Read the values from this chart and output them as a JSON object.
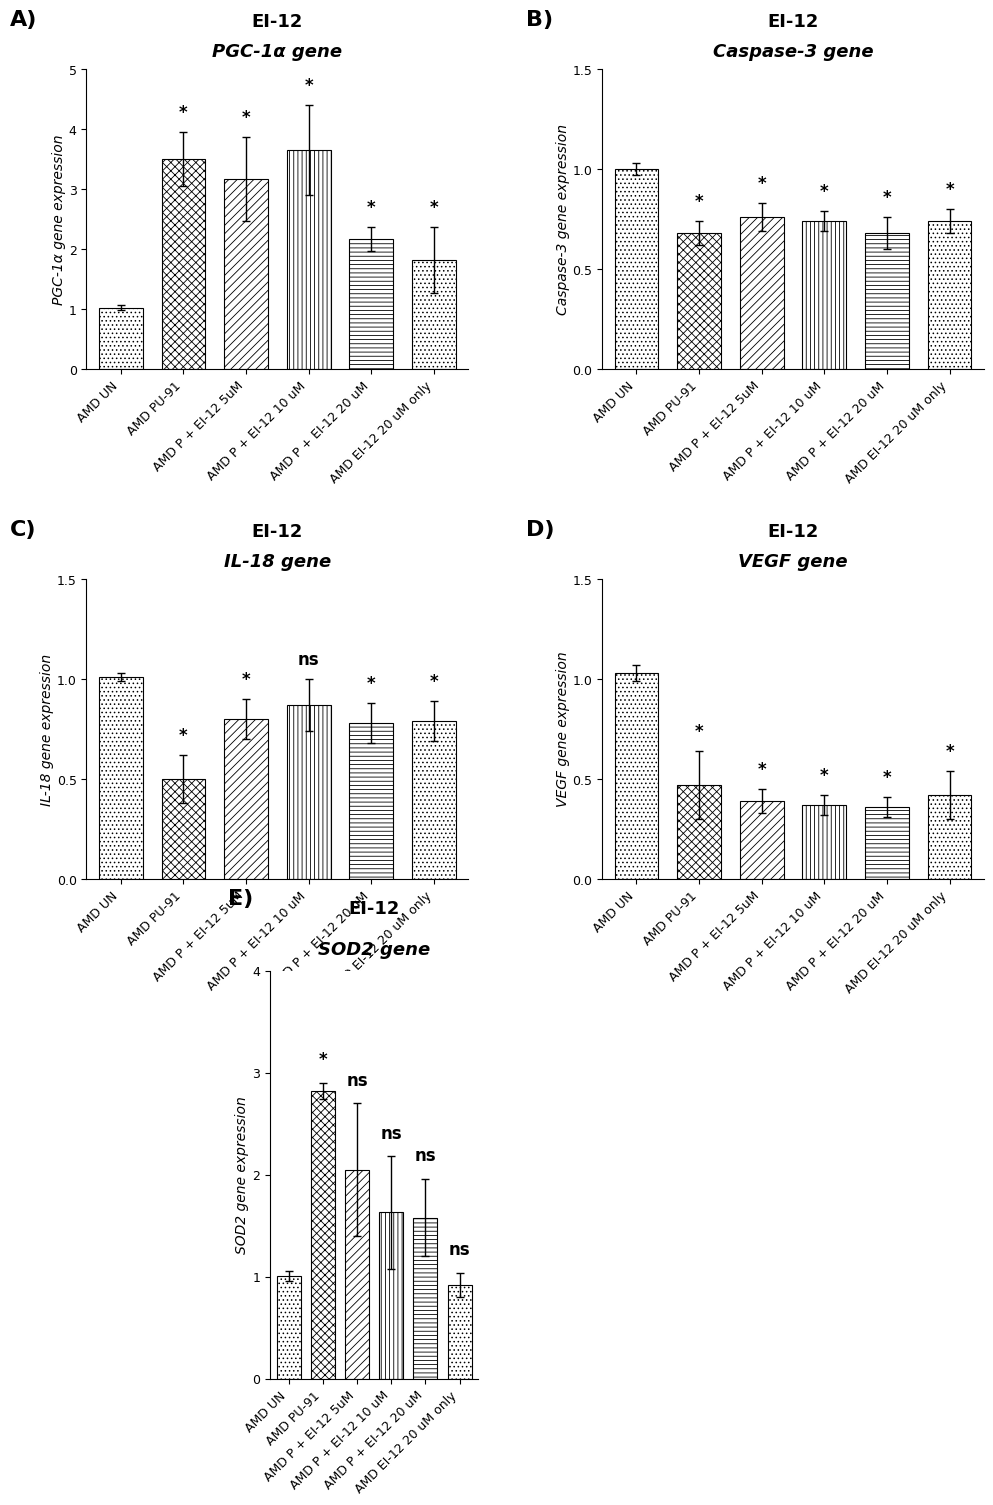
{
  "panels": [
    {
      "label": "A)",
      "title_line1": "EI-12",
      "title_line2": "PGC-1α gene",
      "ylabel": "PGC-1α gene expression",
      "ylim": [
        0,
        5
      ],
      "yticks": [
        0,
        1,
        2,
        3,
        4,
        5
      ],
      "categories": [
        "AMD UN",
        "AMD PU-91",
        "AMD P + EI-12 5uM",
        "AMD P + EI-12 10 uM",
        "AMD P + EI-12 20 uM",
        "AMD EI-12 20 uM only"
      ],
      "values": [
        1.03,
        3.5,
        3.17,
        3.65,
        2.17,
        1.83
      ],
      "errors": [
        0.05,
        0.45,
        0.7,
        0.75,
        0.2,
        0.55
      ],
      "sig": [
        "",
        "*",
        "*",
        "*",
        "*",
        "*"
      ]
    },
    {
      "label": "B)",
      "title_line1": "EI-12",
      "title_line2": "Caspase-3 gene",
      "ylabel": "Caspase-3 gene expression",
      "ylim": [
        0,
        1.5
      ],
      "yticks": [
        0.0,
        0.5,
        1.0,
        1.5
      ],
      "categories": [
        "AMD UN",
        "AMD PU-91",
        "AMD P + EI-12 5uM",
        "AMD P + EI-12 10 uM",
        "AMD P + EI-12 20 uM",
        "AMD EI-12 20 uM only"
      ],
      "values": [
        1.0,
        0.68,
        0.76,
        0.74,
        0.68,
        0.74
      ],
      "errors": [
        0.03,
        0.06,
        0.07,
        0.05,
        0.08,
        0.06
      ],
      "sig": [
        "",
        "*",
        "*",
        "*",
        "*",
        "*"
      ]
    },
    {
      "label": "C)",
      "title_line1": "EI-12",
      "title_line2": "IL-18 gene",
      "ylabel": "IL-18 gene expression",
      "ylim": [
        0,
        1.5
      ],
      "yticks": [
        0.0,
        0.5,
        1.0,
        1.5
      ],
      "categories": [
        "AMD UN",
        "AMD PU-91",
        "AMD P + EI-12 5uM",
        "AMD P + EI-12 10 uM",
        "AMD P + EI-12 20 uM",
        "AMD EI-12 20 uM only"
      ],
      "values": [
        1.01,
        0.5,
        0.8,
        0.87,
        0.78,
        0.79
      ],
      "errors": [
        0.02,
        0.12,
        0.1,
        0.13,
        0.1,
        0.1
      ],
      "sig": [
        "",
        "*",
        "*",
        "ns",
        "*",
        "*"
      ]
    },
    {
      "label": "D)",
      "title_line1": "EI-12",
      "title_line2": "VEGF gene",
      "ylabel": "VEGF gene expression",
      "ylim": [
        0,
        1.5
      ],
      "yticks": [
        0.0,
        0.5,
        1.0,
        1.5
      ],
      "categories": [
        "AMD UN",
        "AMD PU-91",
        "AMD P + EI-12 5uM",
        "AMD P + EI-12 10 uM",
        "AMD P + EI-12 20 uM",
        "AMD EI-12 20 uM only"
      ],
      "values": [
        1.03,
        0.47,
        0.39,
        0.37,
        0.36,
        0.42
      ],
      "errors": [
        0.04,
        0.17,
        0.06,
        0.05,
        0.05,
        0.12
      ],
      "sig": [
        "",
        "*",
        "*",
        "*",
        "*",
        "*"
      ]
    },
    {
      "label": "E)",
      "title_line1": "EI-12",
      "title_line2": "SOD2 gene",
      "ylabel": "SOD2 gene expression",
      "ylim": [
        0,
        4
      ],
      "yticks": [
        0,
        1,
        2,
        3,
        4
      ],
      "categories": [
        "AMD UN",
        "AMD PU-91",
        "AMD P + EI-12 5uM",
        "AMD P + EI-12 10 uM",
        "AMD P + EI-12 20 uM",
        "AMD EI-12 20 uM only"
      ],
      "values": [
        1.01,
        2.82,
        2.05,
        1.63,
        1.58,
        0.92
      ],
      "errors": [
        0.05,
        0.08,
        0.65,
        0.55,
        0.38,
        0.12
      ],
      "sig": [
        "",
        "*",
        "ns",
        "ns",
        "ns",
        "ns"
      ]
    }
  ],
  "hatch_patterns": [
    "....",
    "xxxx",
    "////",
    "||||",
    "----",
    "...."
  ],
  "label_fontsize": 16,
  "title_fontsize": 13,
  "ylabel_fontsize": 10,
  "tick_fontsize": 9,
  "sig_fontsize": 12,
  "bar_width": 0.7,
  "background_color": "#ffffff"
}
